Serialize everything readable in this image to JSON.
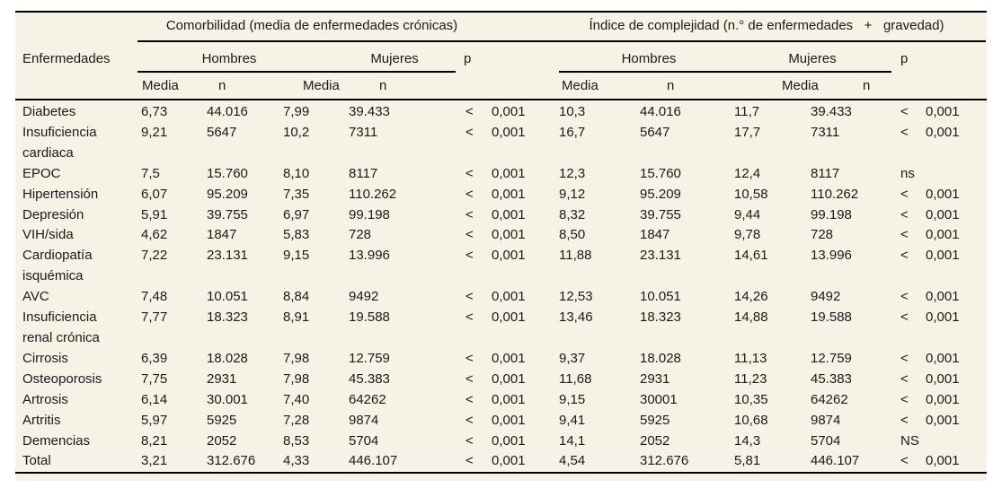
{
  "colors": {
    "sheet_background": "#f7f2e6",
    "rule": "#000000",
    "text": "#1a1a1a"
  },
  "table": {
    "first_col_header": "Enfermedades",
    "groups": {
      "comorbidity_title": "Comorbilidad (media de enfermedades crónicas)",
      "complexity_title": "Índice de complejidad (n.° de enfermedades   +   gravedad)"
    },
    "sub_headers": {
      "men": "Hombres",
      "women": "Mujeres",
      "p": "p"
    },
    "col_headers": {
      "mean": "Media",
      "n": "n"
    },
    "rows": [
      {
        "cells": [
          "Diabetes",
          "6,73",
          "44.016",
          "7,99",
          "39.433",
          "<",
          "0,001",
          "10,3",
          "44.016",
          "11,7",
          "39.433",
          "<",
          "0,001"
        ]
      },
      {
        "cells": [
          "Insuficiencia\ncardiaca",
          "9,21",
          "5647",
          "10,2",
          "7311",
          "<",
          "0,001",
          "16,7",
          "5647",
          "17,7",
          "7311",
          "<",
          "0,001"
        ]
      },
      {
        "cells": [
          "EPOC",
          "7,5",
          "15.760",
          "8,10",
          "8117",
          "<",
          "0,001",
          "12,3",
          "15.760",
          "12,4",
          "8117",
          "ns",
          ""
        ]
      },
      {
        "cells": [
          "Hipertensión",
          "6,07",
          "95.209",
          "7,35",
          "110.262",
          "<",
          "0,001",
          "9,12",
          "95.209",
          "10,58",
          "110.262",
          "<",
          "0,001"
        ]
      },
      {
        "cells": [
          "Depresión",
          "5,91",
          "39.755",
          "6,97",
          "99.198",
          "<",
          "0,001",
          "8,32",
          "39.755",
          "9,44",
          "99.198",
          "<",
          "0,001"
        ]
      },
      {
        "cells": [
          "VIH/sida",
          "4,62",
          "1847",
          "5,83",
          "728",
          "<",
          "0,001",
          "8,50",
          "1847",
          "9,78",
          "728",
          "<",
          "0,001"
        ]
      },
      {
        "cells": [
          "Cardiopatía\nisquémica",
          "7,22",
          "23.131",
          "9,15",
          "13.996",
          "<",
          "0,001",
          "11,88",
          "23.131",
          "14,61",
          "13.996",
          "<",
          "0,001"
        ]
      },
      {
        "cells": [
          "AVC",
          "7,48",
          "10.051",
          "8,84",
          "9492",
          "<",
          "0,001",
          "12,53",
          "10.051",
          "14,26",
          "9492",
          "<",
          "0,001"
        ]
      },
      {
        "cells": [
          "Insuficiencia\nrenal crónica",
          "7,77",
          "18.323",
          "8,91",
          "19.588",
          "<",
          "0,001",
          "13,46",
          "18.323",
          "14,88",
          "19.588",
          "<",
          "0,001"
        ]
      },
      {
        "cells": [
          "Cirrosis",
          "6,39",
          "18.028",
          "7,98",
          "12.759",
          "<",
          "0,001",
          "9,37",
          "18.028",
          "11,13",
          "12.759",
          "<",
          "0,001"
        ]
      },
      {
        "cells": [
          "Osteoporosis",
          "7,75",
          "2931",
          "7,98",
          "45.383",
          "<",
          "0,001",
          "11,68",
          "2931",
          "11,23",
          "45.383",
          "<",
          "0,001"
        ]
      },
      {
        "cells": [
          "Artrosis",
          "6,14",
          "30.001",
          "7,40",
          "64262",
          "<",
          "0,001",
          "9,15",
          "30001",
          "10,35",
          "64262",
          "<",
          "0,001"
        ]
      },
      {
        "cells": [
          "Artritis",
          "5,97",
          "5925",
          "7,28",
          "9874",
          "<",
          "0,001",
          "9,41",
          "5925",
          "10,68",
          "9874",
          "<",
          "0,001"
        ]
      },
      {
        "cells": [
          "Demencias",
          "8,21",
          "2052",
          "8,53",
          "5704",
          "<",
          "0,001",
          "14,1",
          "2052",
          "14,3",
          "5704",
          "NS",
          ""
        ]
      },
      {
        "cells": [
          "Total",
          "3,21",
          "312.676",
          "4,33",
          "446.107",
          "<",
          "0,001",
          "4,54",
          "312.676",
          "5,81",
          "446.107",
          "<",
          "0,001"
        ]
      }
    ]
  }
}
